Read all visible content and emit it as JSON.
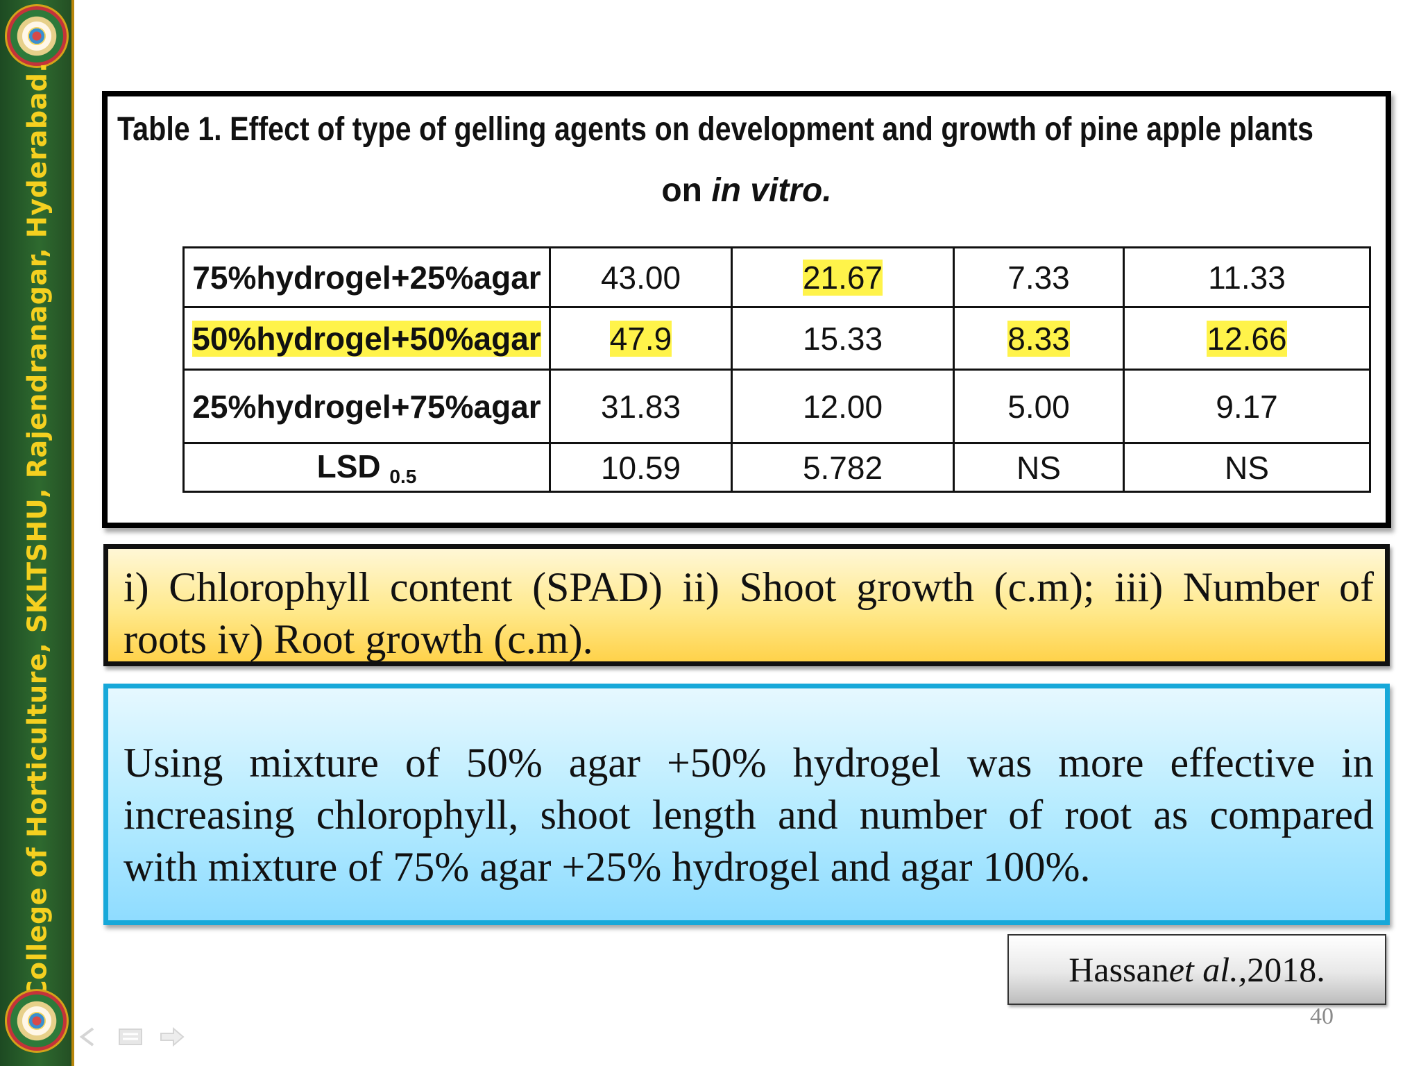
{
  "sidebar": {
    "banner_text": "College of Horticulture, SKLTSHU, Rajendranagar, Hyderabad.",
    "logo_icon": "university-seal-icon"
  },
  "table": {
    "title": "Table 1. Effect of type of gelling agents on development and growth of pine apple plants",
    "subtitle_prefix": "on ",
    "subtitle_italic": "in vitro.",
    "highlight_color": "#fff34a",
    "rows": [
      {
        "label": "75%hydrogel+25%agar",
        "values": [
          "43.00",
          "21.67",
          "7.33",
          "11.33"
        ]
      },
      {
        "label": "50%hydrogel+50%agar",
        "values": [
          "47.9",
          "15.33",
          "8.33",
          "12.66"
        ]
      },
      {
        "label": "25%hydrogel+75%agar",
        "values": [
          "31.83",
          "12.00",
          "5.00",
          "9.17"
        ]
      },
      {
        "label": "LSD",
        "label_sub": "0.5",
        "values": [
          "10.59",
          "5.782",
          "NS",
          "NS"
        ]
      }
    ]
  },
  "caption": {
    "line1_words": [
      "i)",
      "Chlorophyll",
      "content",
      "(SPAD)",
      "ii)",
      "Shoot",
      "growth",
      "(c.m);",
      "iii)",
      "Number",
      "of"
    ],
    "line2": "roots iv) Root growth (c.m).",
    "gradient": [
      "#fff7d6",
      "#ffd24a"
    ]
  },
  "conclusion": {
    "line1_words": [
      "Using",
      "mixture",
      "of",
      "50%",
      "agar",
      "+50%",
      "hydrogel",
      "was",
      "more",
      "effective",
      "in"
    ],
    "line2_words": [
      "increasing",
      "chlorophyll,",
      "shoot",
      "length",
      "and",
      "number",
      "of",
      "root",
      "as",
      "compared"
    ],
    "line3": "with mixture of 75% agar +25% hydrogel and agar 100%.",
    "border_color": "#17a8d9"
  },
  "citation": {
    "author": "Hassan ",
    "etal": "et al.,",
    "year": " 2018."
  },
  "page_number": "40",
  "nav": {
    "icons": [
      "back-arrow-icon",
      "slides-menu-icon",
      "forward-arrow-icon"
    ]
  }
}
